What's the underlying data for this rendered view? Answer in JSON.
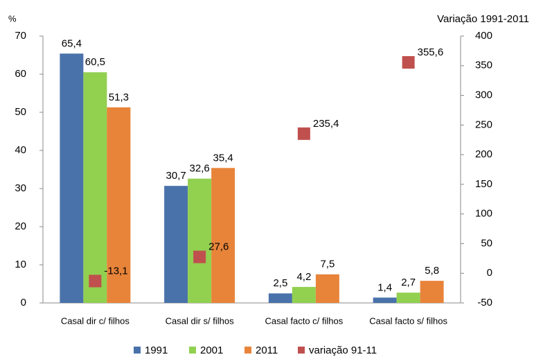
{
  "chart_data": {
    "type": "bar",
    "y_label": "%",
    "y2_label": "Variação 1991-2011",
    "categories": [
      "Casal dir c/ filhos",
      "Casal dir s/ filhos",
      "Casal facto c/ filhos",
      "Casal facto s/ filhos"
    ],
    "series": [
      {
        "name": "1991",
        "color": "#4a72aa",
        "values": [
          65.4,
          30.7,
          2.5,
          1.4
        ],
        "value_labels": [
          "65,4",
          "30,7",
          "2,5",
          "1,4"
        ]
      },
      {
        "name": "2001",
        "color": "#92d050",
        "values": [
          60.5,
          32.6,
          4.2,
          2.7
        ],
        "value_labels": [
          "60,5",
          "32,6",
          "4,2",
          "2,7"
        ]
      },
      {
        "name": "2011",
        "color": "#e8843a",
        "values": [
          51.3,
          35.4,
          7.5,
          5.8
        ],
        "value_labels": [
          "51,3",
          "35,4",
          "7,5",
          "5,8"
        ]
      },
      {
        "name": "variação 91-11",
        "color": "#c0504d",
        "type": "scatter",
        "axis": "y2",
        "values": [
          -13.1,
          27.6,
          235.4,
          355.6
        ],
        "value_labels": [
          "-13,1",
          "27,6",
          "235,4",
          "355,6"
        ]
      }
    ],
    "ylim": [
      0,
      70
    ],
    "yticks": [
      0,
      10,
      20,
      30,
      40,
      50,
      60,
      70
    ],
    "y2lim": [
      -50,
      400
    ],
    "y2ticks": [
      -50,
      0,
      50,
      100,
      150,
      200,
      250,
      300,
      350,
      400
    ],
    "grid": false
  }
}
